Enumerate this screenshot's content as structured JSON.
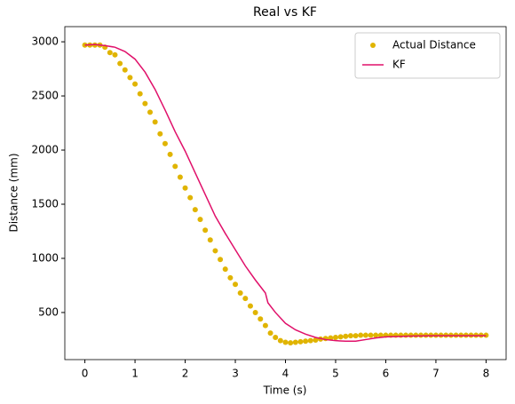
{
  "chart_data": {
    "type": "scatter",
    "title": "Real vs KF",
    "x_label": "Time (s)",
    "y_label": "Distance (mm)",
    "xlim": [
      -0.4,
      8.4
    ],
    "ylim": [
      65,
      3140
    ],
    "xticks": [
      0,
      1,
      2,
      3,
      4,
      5,
      6,
      7,
      8
    ],
    "yticks": [
      500,
      1000,
      1500,
      2000,
      2500,
      3000
    ],
    "legend": "upper right",
    "series": [
      {
        "name": "Actual Distance",
        "mark": "scatter",
        "color": "#e0b400",
        "x": [
          0,
          0.1,
          0.2,
          0.3,
          0.4,
          0.5,
          0.6,
          0.7,
          0.8,
          0.9,
          1.0,
          1.1,
          1.2,
          1.3,
          1.4,
          1.5,
          1.6,
          1.7,
          1.8,
          1.9,
          2.0,
          2.1,
          2.2,
          2.3,
          2.4,
          2.5,
          2.6,
          2.7,
          2.8,
          2.9,
          3.0,
          3.1,
          3.2,
          3.3,
          3.4,
          3.5,
          3.6,
          3.7,
          3.8,
          3.9,
          4.0,
          4.1,
          4.2,
          4.3,
          4.4,
          4.5,
          4.6,
          4.7,
          4.8,
          4.9,
          5.0,
          5.1,
          5.2,
          5.3,
          5.4,
          5.5,
          5.6,
          5.7,
          5.8,
          5.9,
          6.0,
          6.1,
          6.2,
          6.3,
          6.4,
          6.5,
          6.6,
          6.7,
          6.8,
          6.9,
          7.0,
          7.1,
          7.2,
          7.3,
          7.4,
          7.5,
          7.6,
          7.7,
          7.8,
          7.9,
          8.0
        ],
        "values": [
          2970,
          2970,
          2970,
          2970,
          2950,
          2900,
          2880,
          2800,
          2740,
          2670,
          2610,
          2520,
          2430,
          2350,
          2260,
          2150,
          2060,
          1960,
          1850,
          1750,
          1650,
          1560,
          1450,
          1360,
          1260,
          1170,
          1070,
          990,
          900,
          820,
          760,
          680,
          630,
          560,
          500,
          440,
          380,
          310,
          270,
          240,
          225,
          220,
          225,
          230,
          235,
          240,
          245,
          255,
          260,
          265,
          270,
          275,
          280,
          285,
          285,
          290,
          290,
          290,
          290,
          290,
          290,
          290,
          290,
          290,
          290,
          290,
          290,
          290,
          290,
          290,
          290,
          290,
          290,
          290,
          290,
          290,
          290,
          290,
          290,
          290,
          290
        ]
      },
      {
        "name": "KF",
        "mark": "line",
        "color": "#e0106a",
        "x": [
          0,
          0.2,
          0.4,
          0.6,
          0.8,
          1.0,
          1.2,
          1.4,
          1.6,
          1.8,
          2.0,
          2.2,
          2.4,
          2.6,
          2.8,
          3.0,
          3.2,
          3.4,
          3.6,
          3.65,
          3.8,
          4.0,
          4.2,
          4.4,
          4.6,
          4.8,
          5.0,
          5.2,
          5.4,
          5.6,
          5.8,
          6.0,
          6.5,
          7.0,
          8.0
        ],
        "values": [
          2970,
          2975,
          2965,
          2950,
          2910,
          2840,
          2720,
          2560,
          2370,
          2170,
          1990,
          1790,
          1590,
          1390,
          1230,
          1080,
          930,
          800,
          680,
          590,
          500,
          400,
          340,
          300,
          270,
          250,
          240,
          235,
          235,
          250,
          265,
          275,
          282,
          285,
          285
        ]
      }
    ]
  }
}
